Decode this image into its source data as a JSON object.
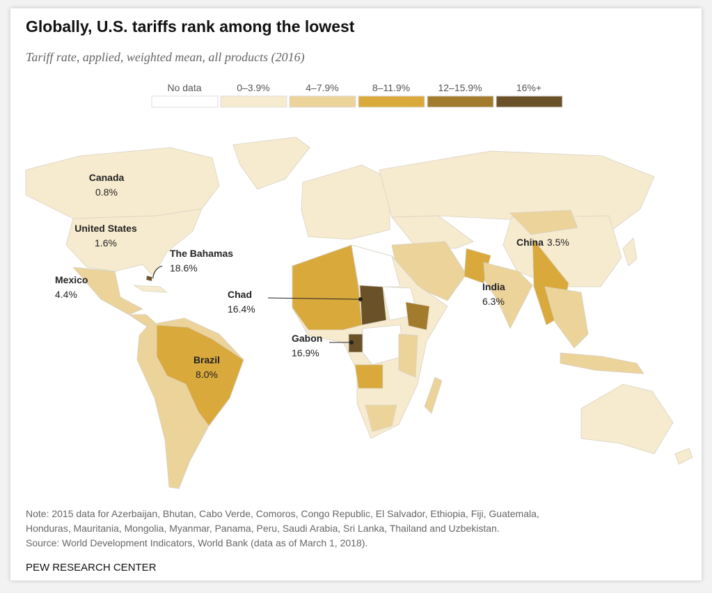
{
  "header": {
    "title": "Globally, U.S. tariffs rank among the lowest",
    "subtitle": "Tariff rate, applied, weighted mean, all products (2016)"
  },
  "legend": [
    {
      "label": "No data",
      "color": "#ffffff"
    },
    {
      "label": "0–3.9%",
      "color": "#f6ebcf"
    },
    {
      "label": "4–7.9%",
      "color": "#ebd39a"
    },
    {
      "label": "8–11.9%",
      "color": "#d9a93c"
    },
    {
      "label": "12–15.9%",
      "color": "#a37b2d"
    },
    {
      "label": "16%+",
      "color": "#6a5127"
    }
  ],
  "annotations": [
    {
      "name": "Canada",
      "value": "0.8%"
    },
    {
      "name": "United States",
      "value": "1.6%"
    },
    {
      "name": "The Bahamas",
      "value": "18.6%"
    },
    {
      "name": "Mexico",
      "value": "4.4%"
    },
    {
      "name": "Chad",
      "value": "16.4%"
    },
    {
      "name": "Gabon",
      "value": "16.9%"
    },
    {
      "name": "Brazil",
      "value": "8.0%"
    },
    {
      "name": "India",
      "value": "6.3%"
    },
    {
      "name": "China",
      "value": "3.5%"
    }
  ],
  "note": [
    "Note: 2015 data for Azerbaijan, Bhutan, Cabo Verde, Comoros, Congo Republic, El Salvador, Ethiopia, Fiji, Guatemala,",
    "Honduras, Mauritania, Mongolia, Myanmar, Panama, Peru, Saudi Arabia, Sri Lanka, Thailand and Uzbekistan.",
    "Source: World Development Indicators, World Bank (data as of March 1, 2018)."
  ],
  "footer": "PEW RESEARCH CENTER"
}
